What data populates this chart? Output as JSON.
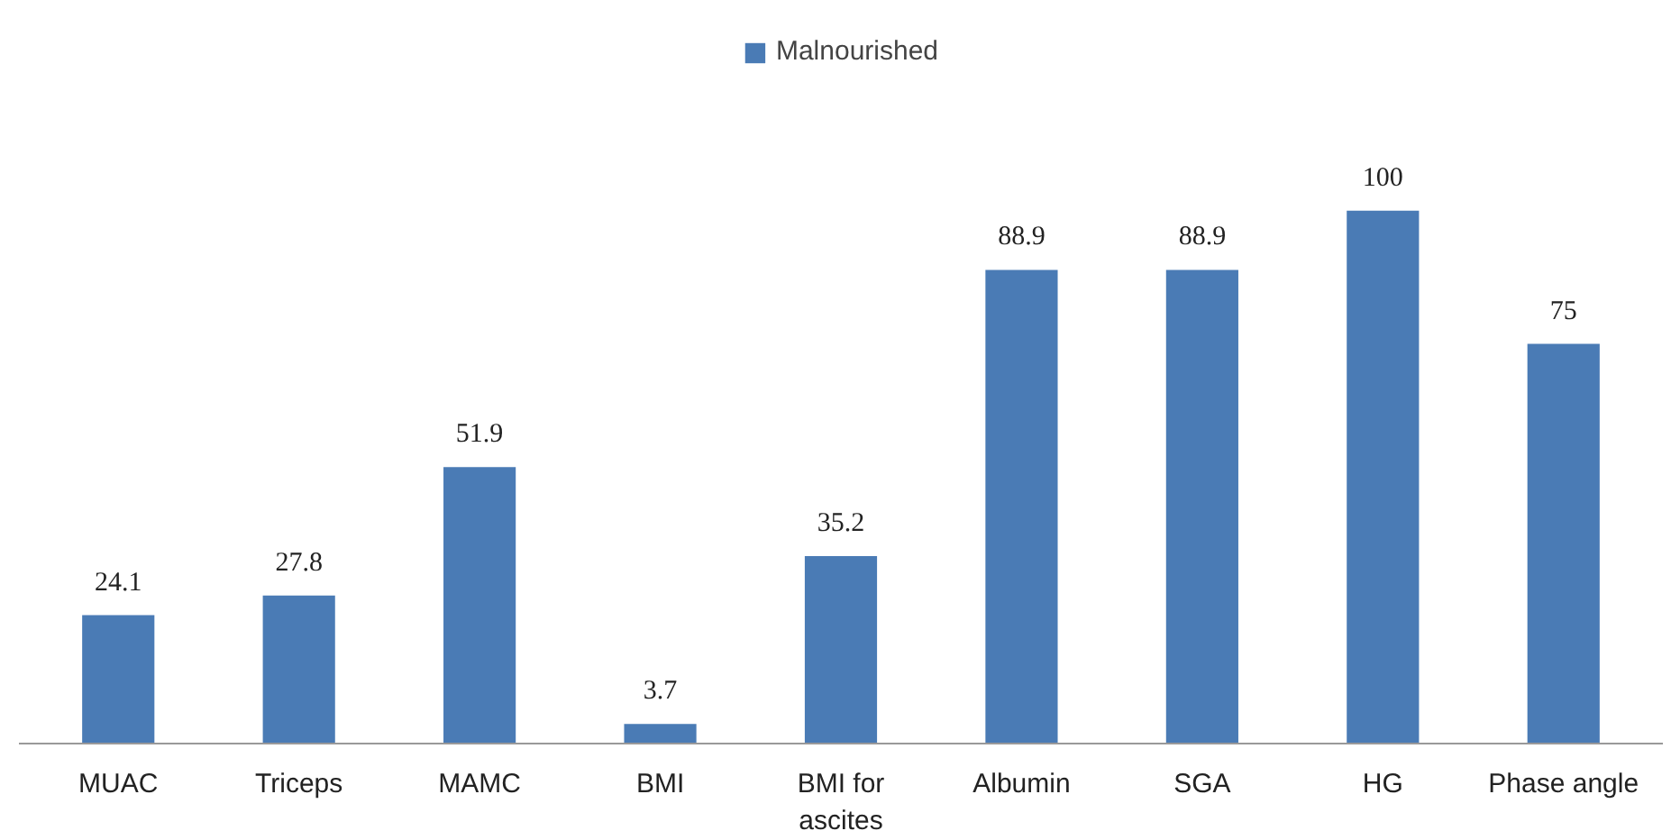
{
  "chart_data": {
    "type": "bar",
    "categories": [
      "MUAC",
      "Triceps",
      "MAMC",
      "BMI",
      "BMI for ascites",
      "Albumin",
      "SGA",
      "HG",
      "Phase angle"
    ],
    "series": [
      {
        "name": "Malnourished",
        "color": "#4a7bb5",
        "values": [
          24.1,
          27.8,
          51.9,
          3.7,
          35.2,
          88.9,
          88.9,
          100,
          75
        ]
      }
    ],
    "data_labels": true,
    "legend": "top",
    "grid": false
  }
}
